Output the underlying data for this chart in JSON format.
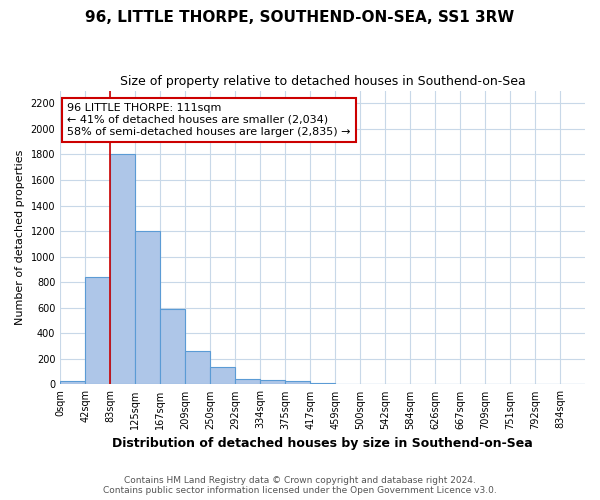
{
  "title": "96, LITTLE THORPE, SOUTHEND-ON-SEA, SS1 3RW",
  "subtitle": "Size of property relative to detached houses in Southend-on-Sea",
  "xlabel": "Distribution of detached houses by size in Southend-on-Sea",
  "ylabel": "Number of detached properties",
  "footer_line1": "Contains HM Land Registry data © Crown copyright and database right 2024.",
  "footer_line2": "Contains public sector information licensed under the Open Government Licence v3.0.",
  "bin_labels": [
    "0sqm",
    "42sqm",
    "83sqm",
    "125sqm",
    "167sqm",
    "209sqm",
    "250sqm",
    "292sqm",
    "334sqm",
    "375sqm",
    "417sqm",
    "459sqm",
    "500sqm",
    "542sqm",
    "584sqm",
    "626sqm",
    "667sqm",
    "709sqm",
    "751sqm",
    "792sqm",
    "834sqm"
  ],
  "bar_heights": [
    25,
    840,
    1800,
    1200,
    590,
    260,
    135,
    40,
    35,
    25,
    15,
    0,
    0,
    0,
    0,
    0,
    0,
    0,
    0,
    0,
    0
  ],
  "bar_color": "#aec6e8",
  "bar_edgecolor": "#5b9bd5",
  "annotation_text": "96 LITTLE THORPE: 111sqm\n← 41% of detached houses are smaller (2,034)\n58% of semi-detached houses are larger (2,835) →",
  "annotation_box_edgecolor": "#cc0000",
  "vline_x": 2.0,
  "vline_color": "#cc0000",
  "ylim": [
    0,
    2300
  ],
  "yticks": [
    0,
    200,
    400,
    600,
    800,
    1000,
    1200,
    1400,
    1600,
    1800,
    2000,
    2200
  ],
  "grid_color": "#c8d8e8",
  "title_fontsize": 11,
  "subtitle_fontsize": 9,
  "xlabel_fontsize": 9,
  "ylabel_fontsize": 8,
  "tick_fontsize": 7,
  "annotation_fontsize": 8,
  "footer_fontsize": 6.5
}
